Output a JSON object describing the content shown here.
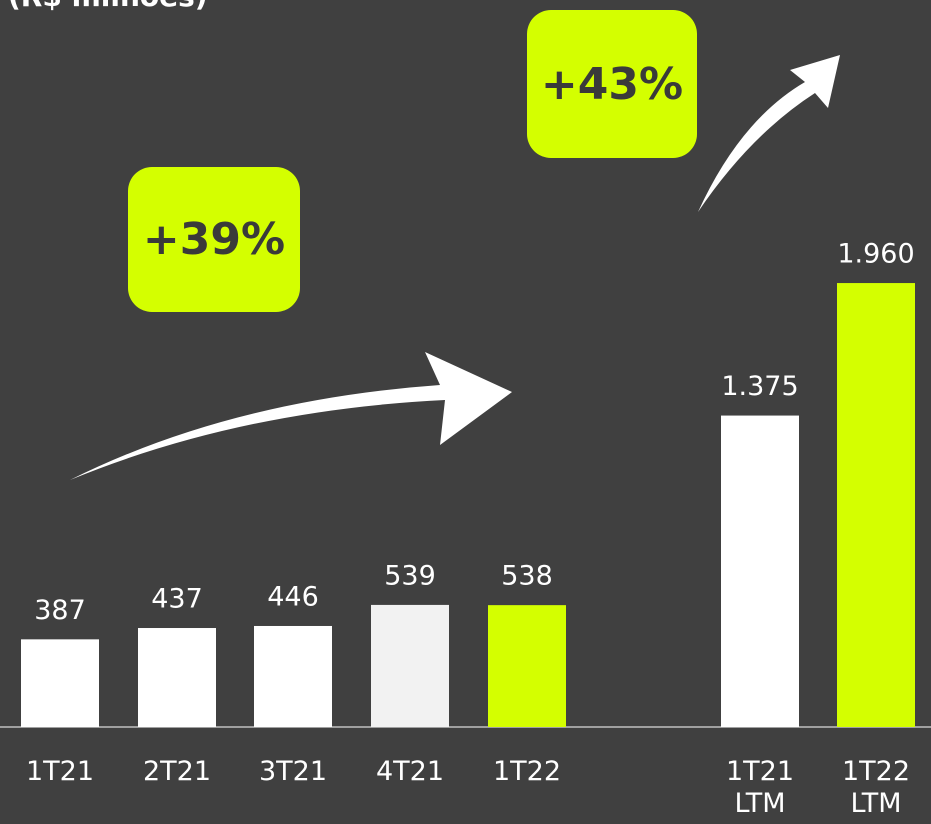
{
  "chart_data": {
    "type": "bar",
    "title": "(R$ milhões)",
    "categories": [
      "1T21",
      "2T21",
      "3T21",
      "4T21",
      "1T22",
      "1T21 LTM",
      "1T22 LTM"
    ],
    "values": [
      387,
      437,
      446,
      539,
      538,
      1375,
      1960
    ],
    "value_labels": [
      "387",
      "437",
      "446",
      "539",
      "538",
      "1.375",
      "1.960"
    ],
    "colors": [
      "#ffffff",
      "#ffffff",
      "#ffffff",
      "#f2f2f2",
      "#d4ff00",
      "#ffffff",
      "#d4ff00"
    ],
    "ylim": [
      0,
      2000
    ],
    "annotations": [
      "+39%",
      "+43%"
    ]
  }
}
